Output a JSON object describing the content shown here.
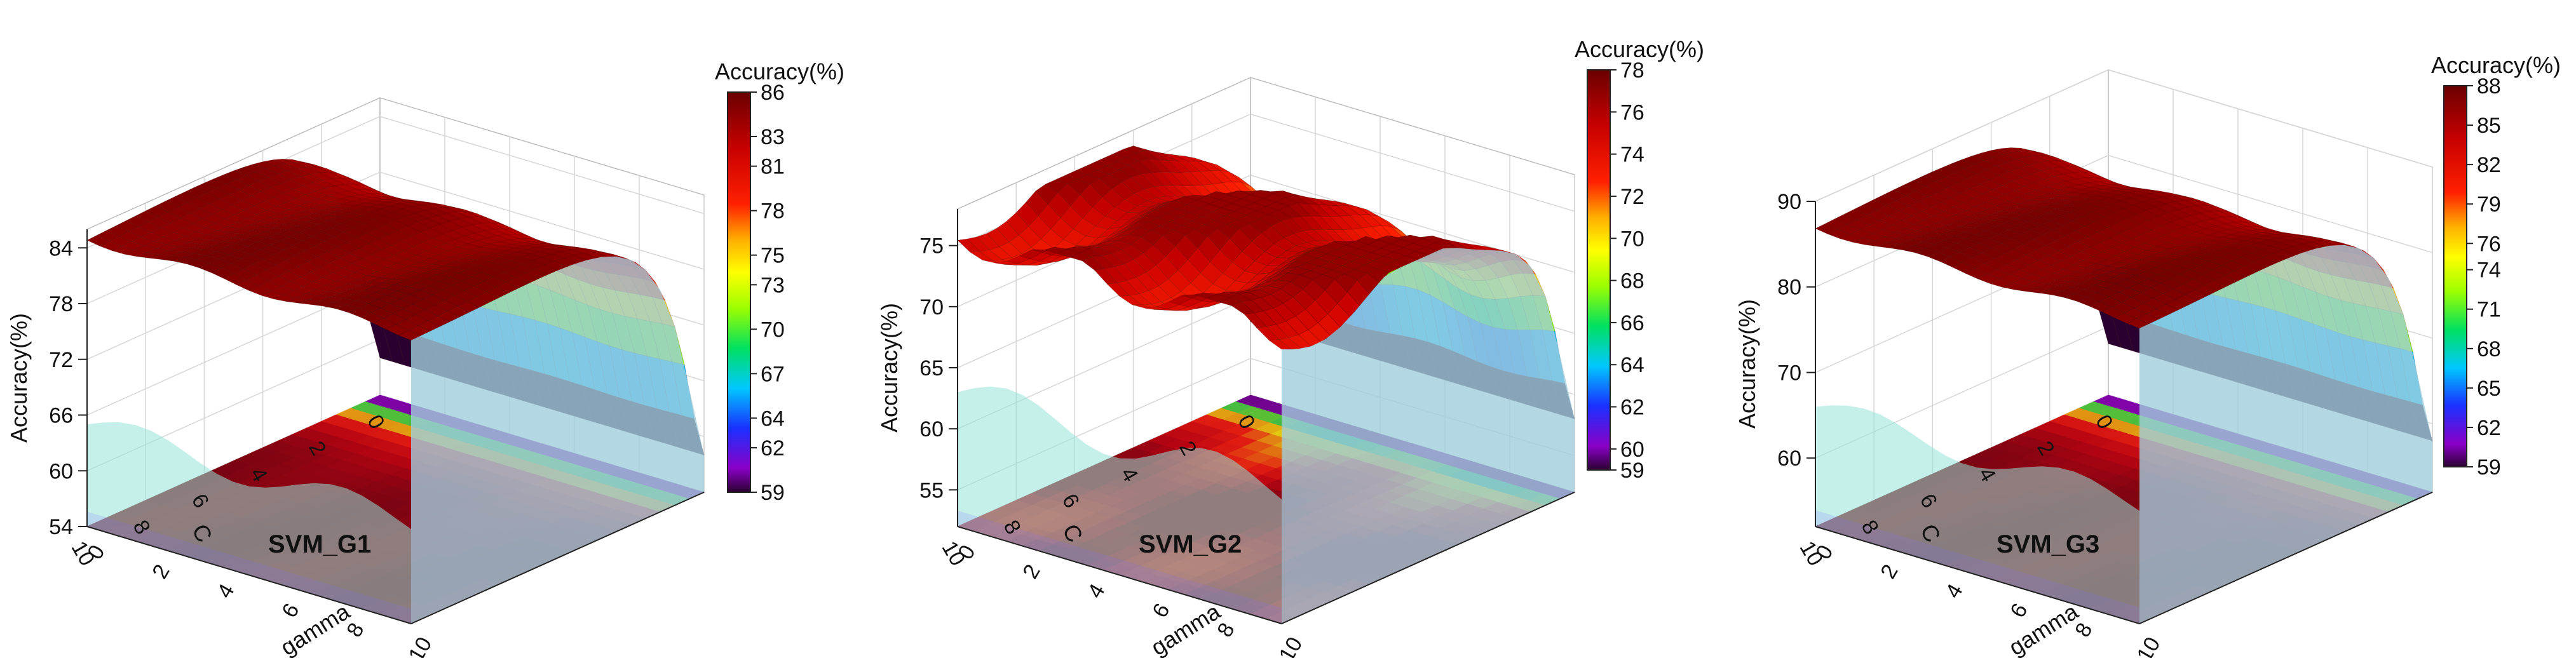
{
  "chart_data": [
    {
      "type": "surface3d",
      "panel_label": "SVM_G1",
      "zlabel": "Accuracy(%)",
      "xlabel": "C",
      "ylabel": "gamma",
      "colorbar_title": "Accuracy(%)",
      "x_ticks": [
        0,
        2,
        4,
        6,
        8,
        10
      ],
      "y_ticks": [
        0,
        2,
        4,
        6,
        8,
        10
      ],
      "z_ticks": [
        54,
        60,
        66,
        72,
        78,
        84
      ],
      "zlim": [
        54,
        86
      ],
      "colorbar_ticks": [
        59,
        62,
        64,
        67,
        70,
        73,
        75,
        78,
        81,
        83,
        86
      ],
      "colorbar_range": [
        59,
        86
      ],
      "plateau": 85,
      "floor_value": 58,
      "back_wall_height": 65
    },
    {
      "type": "surface3d",
      "panel_label": "SVM_G2",
      "zlabel": "Accuracy(%)",
      "xlabel": "C",
      "ylabel": "gamma",
      "colorbar_title": "Accuracy(%)",
      "x_ticks": [
        0,
        2,
        4,
        6,
        8,
        10
      ],
      "y_ticks": [
        0,
        2,
        4,
        6,
        8,
        10
      ],
      "z_ticks": [
        55,
        60,
        65,
        70,
        75
      ],
      "zlim": [
        52,
        78
      ],
      "colorbar_ticks": [
        59,
        60,
        62,
        64,
        66,
        68,
        70,
        72,
        74,
        76,
        78
      ],
      "colorbar_range": [
        59,
        78
      ],
      "plateau": 76,
      "floor_value": 58,
      "back_wall_height": 63
    },
    {
      "type": "surface3d",
      "panel_label": "SVM_G3",
      "zlabel": "Accuracy(%)",
      "xlabel": "C",
      "ylabel": "gamma",
      "colorbar_title": "Accuracy(%)",
      "x_ticks": [
        0,
        2,
        4,
        6,
        8,
        10
      ],
      "y_ticks": [
        0,
        2,
        4,
        6,
        8,
        10
      ],
      "z_ticks": [
        60,
        70,
        80,
        90
      ],
      "zlim": [
        52,
        90
      ],
      "colorbar_ticks": [
        59,
        62,
        65,
        68,
        71,
        74,
        76,
        79,
        82,
        85,
        88
      ],
      "colorbar_range": [
        59,
        88
      ],
      "plateau": 87,
      "floor_value": 58,
      "back_wall_height": 66
    }
  ]
}
